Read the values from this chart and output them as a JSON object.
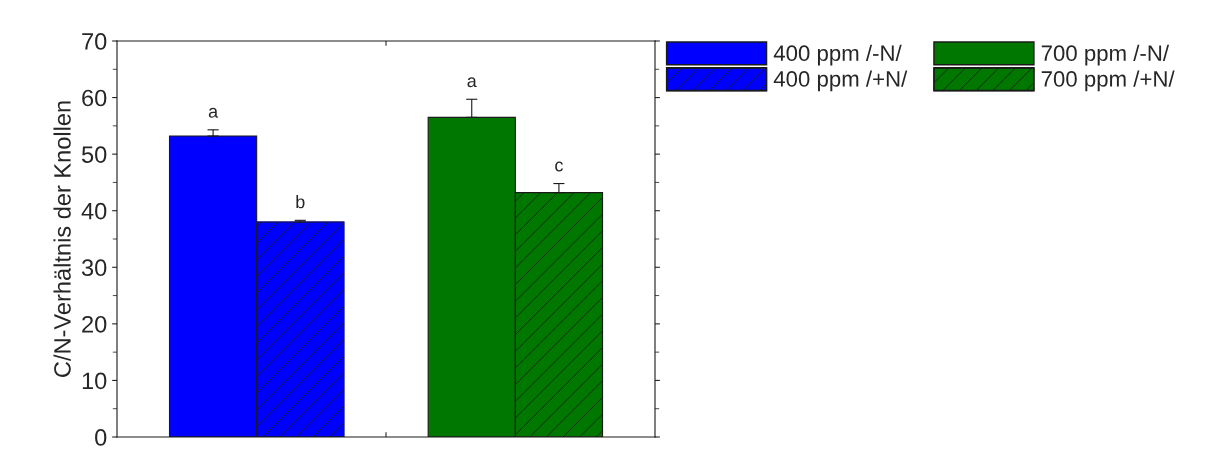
{
  "chart_data": {
    "type": "bar",
    "ylabel": "C/N-Verhältnis der Knollen",
    "categories": [
      null,
      null
    ],
    "series": [
      {
        "name": "400 ppm /-N/",
        "color": "#0000ff",
        "values": [
          53.2,
          null
        ],
        "errors": [
          1.1,
          null
        ]
      },
      {
        "name": "400 ppm /+N/",
        "color": "#0000ff",
        "values": [
          38.0,
          null
        ],
        "errors": [
          0.3,
          null
        ]
      },
      {
        "name": "700 ppm /-N/",
        "color": "#007800",
        "values": [
          null,
          56.5
        ],
        "errors": [
          null,
          3.2
        ]
      },
      {
        "name": "700 ppm /+N/",
        "color": "#007800",
        "values": [
          null,
          43.2
        ],
        "errors": [
          null,
          1.6
        ]
      }
    ],
    "annotations": [
      "a",
      "b",
      "a",
      "c"
    ],
    "ylim": [
      0,
      70
    ],
    "yticks": [
      0,
      10,
      20,
      30,
      40,
      50,
      60,
      70
    ],
    "grid": false,
    "legend": "right"
  }
}
